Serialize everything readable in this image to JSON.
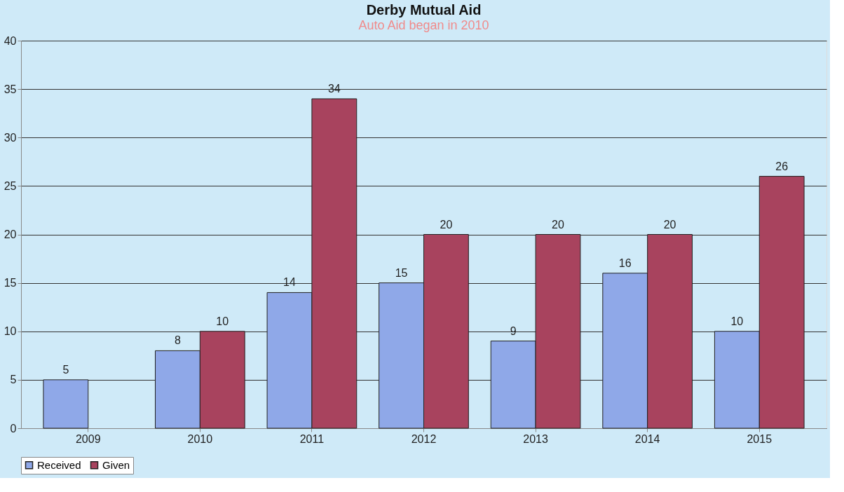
{
  "chart_data": {
    "type": "bar",
    "title": "Derby Mutual Aid",
    "subtitle": "Auto Aid began in 2010",
    "categories": [
      "2009",
      "2010",
      "2011",
      "2012",
      "2013",
      "2014",
      "2015"
    ],
    "series": [
      {
        "name": "Received",
        "color": "#8fa8e8",
        "values": [
          5,
          8,
          14,
          15,
          9,
          16,
          10
        ]
      },
      {
        "name": "Given",
        "color": "#a8435e",
        "values": [
          null,
          10,
          34,
          20,
          20,
          20,
          26
        ]
      }
    ],
    "ylim": [
      0,
      40
    ],
    "yticks": [
      0,
      5,
      10,
      15,
      20,
      25,
      30,
      35,
      40
    ],
    "grid": "y",
    "legend": "bottom",
    "data_labels": true
  }
}
